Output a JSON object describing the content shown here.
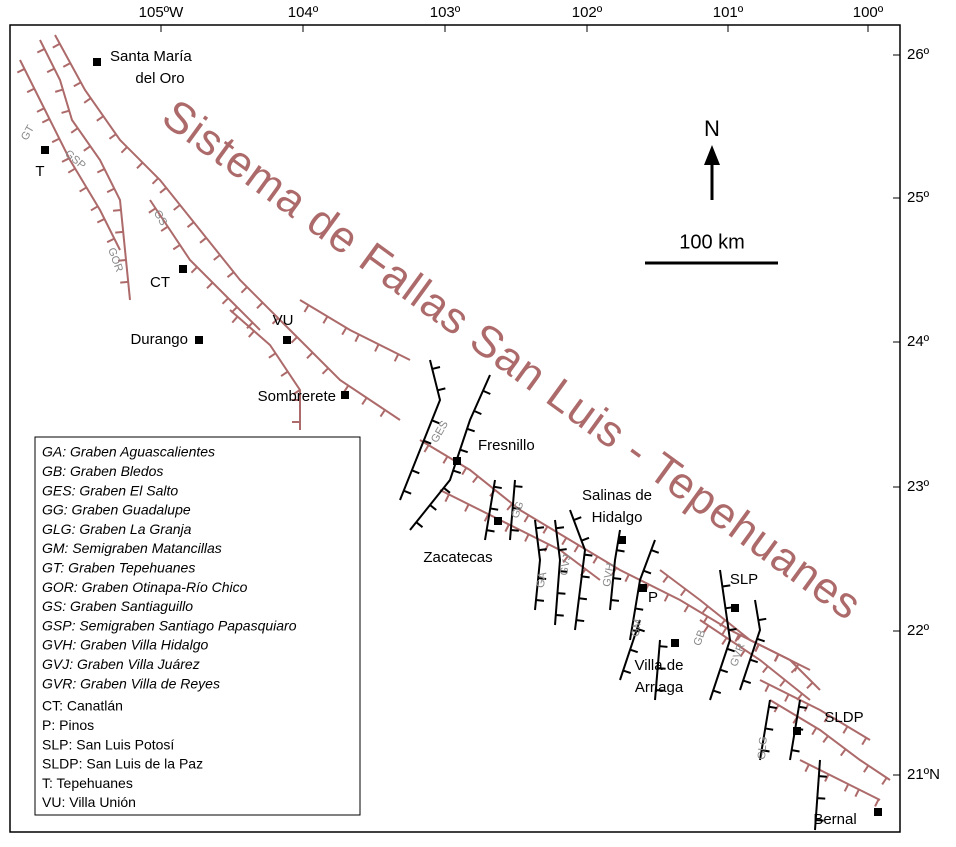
{
  "map": {
    "title": "Sistema de Fallas San Luis - Tepehuanes",
    "longitude_labels": [
      "105ºW",
      "104º",
      "103º",
      "102º",
      "101º",
      "100º"
    ],
    "latitude_labels": [
      "26º",
      "25º",
      "24º",
      "23º",
      "22º",
      "21ºN"
    ],
    "north_label": "N",
    "scale_label": "100 km",
    "places": [
      {
        "lines": [
          "Santa María",
          "del Oro"
        ]
      },
      {
        "lines": [
          "T"
        ]
      },
      {
        "lines": [
          "CT"
        ]
      },
      {
        "lines": [
          "Durango"
        ]
      },
      {
        "lines": [
          "VU"
        ]
      },
      {
        "lines": [
          "Sombrerete"
        ]
      },
      {
        "lines": [
          "Fresnillo"
        ]
      },
      {
        "lines": [
          "Salinas de",
          "Hidalgo"
        ]
      },
      {
        "lines": [
          "Zacatecas"
        ]
      },
      {
        "lines": [
          "P"
        ]
      },
      {
        "lines": [
          "SLP"
        ]
      },
      {
        "lines": [
          "Villa de",
          "Arriaga"
        ]
      },
      {
        "lines": [
          "SLDP"
        ]
      },
      {
        "lines": [
          "Bernal"
        ]
      }
    ],
    "graben_labels": [
      "GT",
      "GSP",
      "GS",
      "GOR",
      "GES",
      "GG",
      "GA",
      "GVJ",
      "GVH",
      "GM",
      "GB",
      "GVR",
      "GLG"
    ],
    "legend": {
      "grabens": [
        "GA: Graben Aguascalientes",
        "GB: Graben Bledos",
        "GES: Graben El Salto",
        "GG: Graben Guadalupe",
        "GLG: Graben La Granja",
        "GM: Semigraben Matancillas",
        "GT: Graben Tepehuanes",
        "GOR: Graben Otinapa-Río Chico",
        "GS: Graben Santiaguillo",
        "GSP: Semigraben Santiago Papasquiaro",
        "GVH: Graben Villa Hidalgo",
        "GVJ: Graben Villa Juárez",
        "GVR: Graben Villa de Reyes"
      ],
      "places": [
        "CT: Canatlán",
        "P: Pinos",
        "SLP: San Luis Potosí",
        "SLDP: San Luis de la Paz",
        "T: Tepehuanes",
        "VU: Villa Unión"
      ]
    }
  }
}
